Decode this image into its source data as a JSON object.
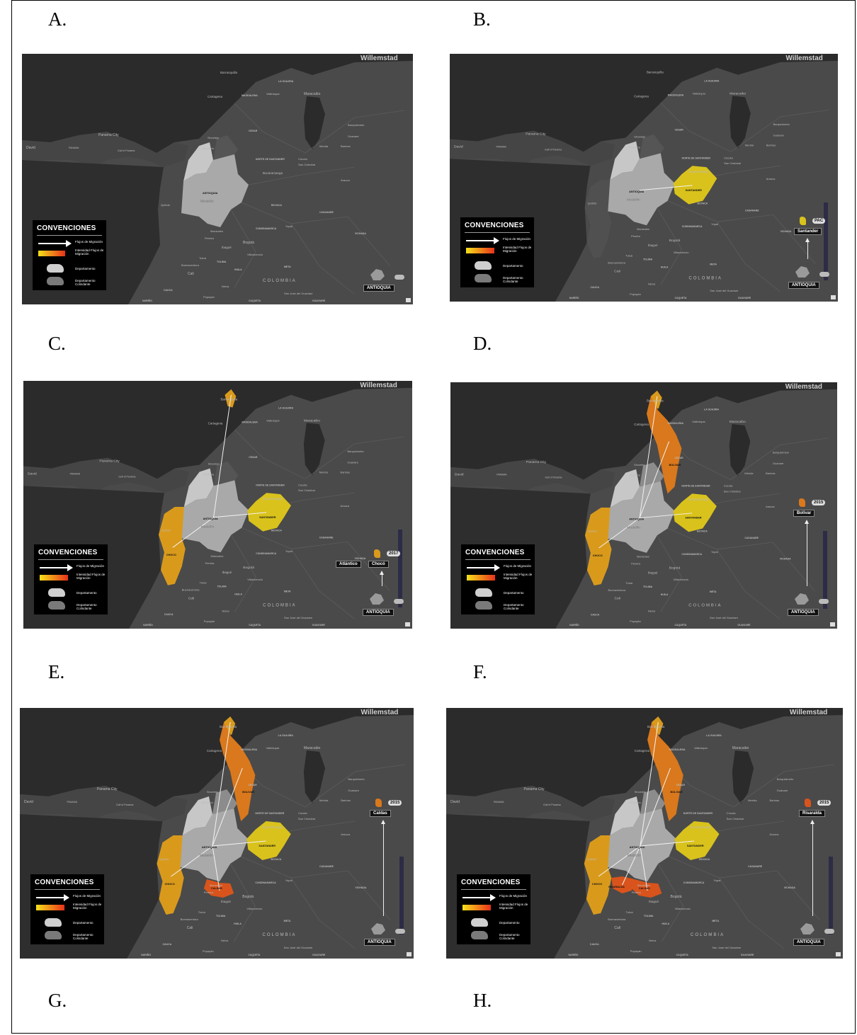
{
  "letters": [
    "A.",
    "B.",
    "C.",
    "D.",
    "E.",
    "F.",
    "G.",
    "H."
  ],
  "map_labels": {
    "willemstad": "Willemstad",
    "barranquilla": "Barranquilla",
    "cartagena": "Cartagena",
    "maracaibo": "Maracaibo",
    "valledupar": "Valledupar",
    "panama_city": "Panama City",
    "david": "David",
    "panama": "PANAMA",
    "gulf": "Gulf of Panama",
    "monteria": "Montería",
    "sincelejo": "Sincelejo",
    "bucaramanga": "Bucaramanga",
    "cucuta": "Cúcuta",
    "san_cristobal": "San Cristobal",
    "merida": "Merida",
    "barinas": "Barinas",
    "barquisimeto": "Barquisimeto",
    "guanare": "Guanare",
    "medellin": "Medellín",
    "quibdo": "Quibdó",
    "manizales": "Manizales",
    "pereira": "Pereira",
    "ibague": "Ibagué",
    "bogota": "Bogotá",
    "villavicencio": "Villavicencio",
    "tulua": "Tuluá",
    "buenaventura": "Buenaventura",
    "cali": "Cali",
    "neiva": "Neiva",
    "popayan": "Popayán",
    "yopal": "Yopal",
    "arauca": "Arauca",
    "san_jose": "San José del Guaviare",
    "colombia": "COLOMBIA",
    "antioquia": "ANTIOQUIA",
    "santander": "SANTANDER",
    "choco": "CHOCO",
    "bolivar": "BOLIVAR",
    "caldas": "CALDAS",
    "risaralda": "RISARALDA",
    "cesar": "CESAR",
    "la_guajira": "LA GUAJIRA",
    "magdalena": "MAGDALENA",
    "norte_santander": "NORTE DE SANTANDER",
    "boyaca": "BOYACA",
    "casanare": "CASANARE",
    "cundinamarca": "CUNDINAMARCA",
    "tolima": "TOLIMA",
    "meta": "META",
    "vichada": "VICHADA",
    "cauca": "CAUCA",
    "huila": "HUILA",
    "guaviare": "GUAVIARE",
    "narino": "NARIÑO",
    "caqueta": "CAQUETA"
  },
  "legend": {
    "title": "CONVENCIONES",
    "flujos": "Flujos de Migración",
    "intensidad": "Intensidad Flujos de Migración",
    "departamento": "Departamento",
    "colindante": "Departamento Colindante"
  },
  "side_labels": {
    "antioquia": "ANTIOQUIA",
    "santander": "Santander",
    "atlantico": "Atlántico",
    "choco": "Chocó",
    "bolivar": "Bolivar",
    "caldas": "Caldas",
    "risaralda": "Risaralda",
    "pill_b": "PAC",
    "pill_c": "2017",
    "pill_d": "2015",
    "pill_e": "2015",
    "pill_f": "2015"
  },
  "colors": {
    "land": "#4a4a4a",
    "sea": "#2b2b2b",
    "origin": "#a9a9a9",
    "neighbor": "#c7c7c7",
    "yellow": "#d9c21c",
    "amber": "#d99a1c",
    "orange": "#d9781c",
    "red_orange": "#d9541c"
  }
}
